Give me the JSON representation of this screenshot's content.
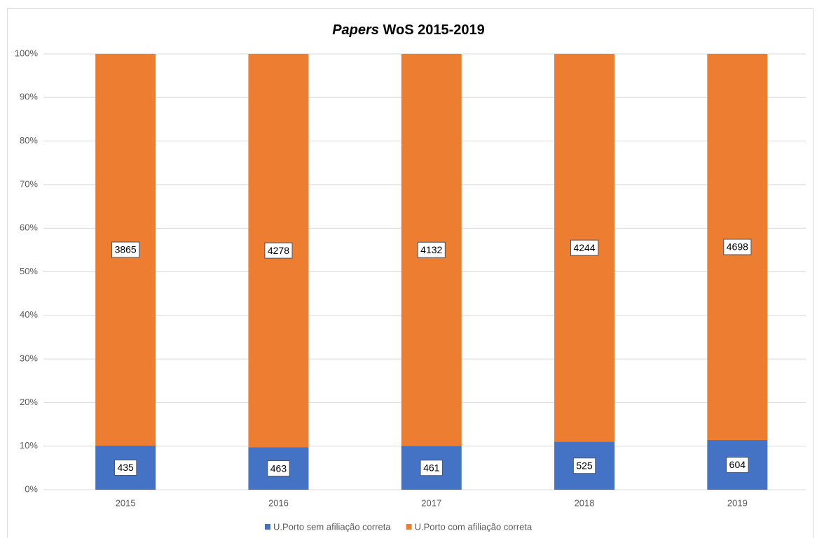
{
  "chart_data": {
    "type": "bar",
    "stacking": "percent",
    "title": "Papers WoS 2015-2019",
    "categories": [
      "2015",
      "2016",
      "2017",
      "2018",
      "2019"
    ],
    "series": [
      {
        "name": "U.Porto sem afiliação correta",
        "color": "#4472c4",
        "values": [
          435,
          463,
          461,
          525,
          604
        ]
      },
      {
        "name": "U.Porto com afiliação correta",
        "color": "#ed7d31",
        "values": [
          3865,
          4278,
          4132,
          4244,
          4698
        ]
      }
    ],
    "ylim": [
      0,
      100
    ],
    "yticks": [
      {
        "value": 0,
        "label": "0%"
      },
      {
        "value": 10,
        "label": "10%"
      },
      {
        "value": 20,
        "label": "20%"
      },
      {
        "value": 30,
        "label": "30%"
      },
      {
        "value": 40,
        "label": "40%"
      },
      {
        "value": 50,
        "label": "50%"
      },
      {
        "value": 60,
        "label": "60%"
      },
      {
        "value": 70,
        "label": "70%"
      },
      {
        "value": 80,
        "label": "80%"
      },
      {
        "value": 90,
        "label": "90%"
      },
      {
        "value": 100,
        "label": "100%"
      }
    ],
    "grid": true,
    "legend": "bottom"
  }
}
